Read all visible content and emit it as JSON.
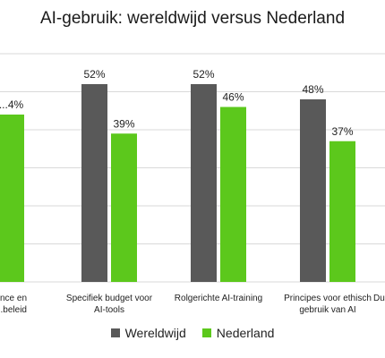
{
  "chart_data": {
    "type": "bar",
    "title": "AI-gebruik: wereldwijd versus Nederland",
    "ylim": [
      0,
      60
    ],
    "grid": true,
    "legend_position": "bottom",
    "categories": [
      [
        "...nce en",
        "...beleid"
      ],
      [
        "Specifiek budget voor",
        "AI-tools"
      ],
      [
        "Rolgerichte AI-training"
      ],
      [
        "Principes voor ethisch",
        "gebruik van AI"
      ],
      [
        "Du..."
      ]
    ],
    "series": [
      {
        "name": "Wereldwijd",
        "color": "#595959",
        "values": [
          null,
          52,
          52,
          48,
          null
        ],
        "labels": [
          null,
          "52%",
          "52%",
          "48%",
          null
        ]
      },
      {
        "name": "Nederland",
        "color": "#5cc81c",
        "values": [
          44,
          39,
          46,
          37,
          null
        ],
        "labels": [
          "...4%",
          "39%",
          "46%",
          "37%",
          null
        ]
      }
    ]
  }
}
